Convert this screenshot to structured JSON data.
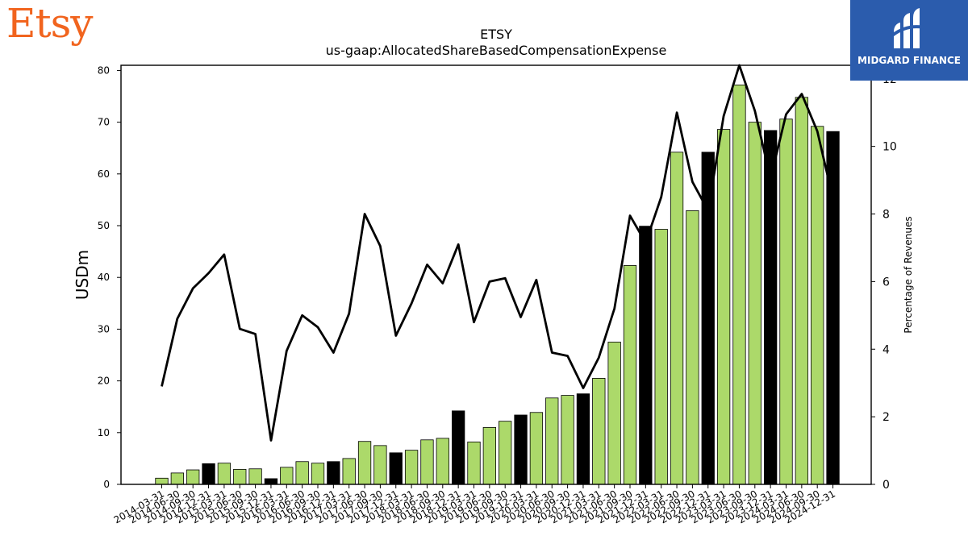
{
  "brand": {
    "logo_text": "Etsy",
    "logo_color": "#f1641e"
  },
  "badge": {
    "text": "MIDGARD FINANCE",
    "bg_color": "#2b5cad"
  },
  "chart_data": {
    "type": "bar",
    "title": "ETSY",
    "subtitle": "us-gaap:AllocatedShareBasedCompensationExpense",
    "ylabel": "USDm",
    "y2label": "Percentage of Revenues",
    "ylim": [
      0,
      81
    ],
    "y2lim": [
      0,
      12.4
    ],
    "yticks": [
      0,
      10,
      20,
      30,
      40,
      50,
      60,
      70,
      80
    ],
    "y2ticks": [
      0,
      2,
      4,
      6,
      8,
      10,
      12
    ],
    "grid": false,
    "colors": {
      "bar": "#acd96a",
      "bar_q4": "#000000",
      "line": "#000000"
    },
    "categories": [
      "2014-03-31",
      "2014-06-30",
      "2014-09-30",
      "2014-12-31",
      "2015-03-31",
      "2015-06-30",
      "2015-09-30",
      "2015-12-31",
      "2016-03-31",
      "2016-06-30",
      "2016-09-30",
      "2016-12-31",
      "2017-03-31",
      "2017-06-30",
      "2017-09-30",
      "2017-12-31",
      "2018-03-31",
      "2018-06-30",
      "2018-09-30",
      "2018-12-31",
      "2019-03-31",
      "2019-06-30",
      "2019-09-30",
      "2019-12-31",
      "2020-03-31",
      "2020-06-30",
      "2020-09-30",
      "2020-12-31",
      "2021-03-31",
      "2021-06-30",
      "2021-09-30",
      "2021-12-31",
      "2022-03-31",
      "2022-06-30",
      "2022-09-30",
      "2022-12-31",
      "2023-03-31",
      "2023-06-30",
      "2023-09-30",
      "2023-12-31",
      "2024-03-31",
      "2024-06-30",
      "2024-09-30",
      "2024-12-31"
    ],
    "series": [
      {
        "type": "bar",
        "values": [
          1.2,
          2.2,
          2.8,
          4.0,
          4.1,
          2.9,
          3.0,
          1.1,
          3.3,
          4.4,
          4.1,
          4.4,
          5.0,
          8.3,
          7.5,
          6.1,
          6.6,
          8.6,
          8.9,
          14.2,
          8.2,
          11.0,
          12.2,
          13.4,
          13.9,
          16.7,
          17.2,
          17.5,
          20.5,
          27.5,
          42.3,
          49.9,
          49.3,
          64.2,
          52.9,
          64.2,
          68.6,
          77.2,
          70.0,
          68.4,
          70.6,
          74.8,
          69.2,
          68.2
        ]
      },
      {
        "type": "line",
        "axis": "right",
        "values": [
          2.9,
          4.9,
          5.8,
          6.25,
          6.8,
          4.6,
          4.45,
          1.3,
          3.95,
          5.0,
          4.65,
          3.9,
          5.05,
          8.0,
          7.05,
          4.4,
          5.35,
          6.5,
          5.95,
          7.1,
          4.8,
          6.0,
          6.1,
          4.95,
          6.05,
          3.9,
          3.8,
          2.85,
          3.75,
          5.2,
          7.95,
          7.15,
          8.5,
          11.0,
          8.95,
          8.1,
          10.9,
          12.4,
          11.05,
          9.05,
          10.95,
          11.55,
          10.45,
          8.45
        ]
      }
    ]
  }
}
